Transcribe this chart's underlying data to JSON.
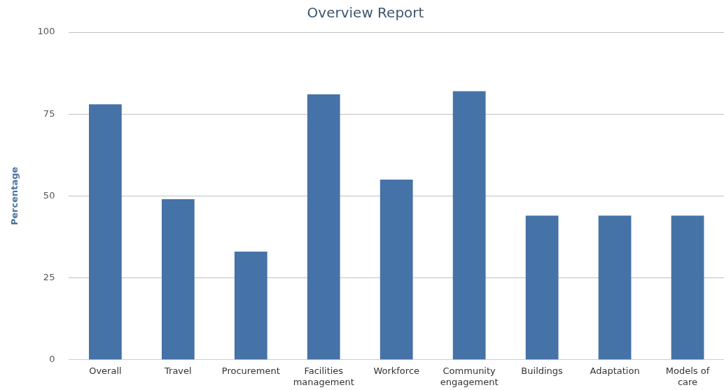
{
  "chart_data": {
    "type": "bar",
    "title": "Overview Report",
    "ylabel": "Percentage",
    "categories": [
      "Overall",
      "Travel",
      "Procurement",
      "Facilities management",
      "Workforce",
      "Community engagement",
      "Buildings",
      "Adaptation",
      "Models of care"
    ],
    "values": [
      78,
      49,
      33,
      81,
      55,
      82,
      44,
      44,
      44
    ],
    "color": "#4572a7",
    "ylim": [
      0,
      100
    ],
    "yticks": [
      0,
      25,
      50,
      75,
      100
    ],
    "grid": "y",
    "legend": false
  }
}
